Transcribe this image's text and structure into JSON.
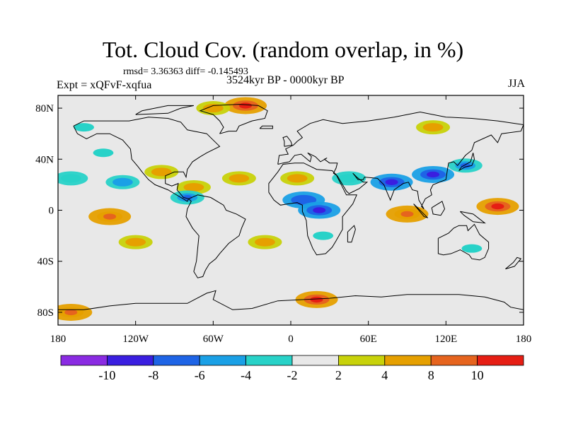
{
  "header": {
    "title": "Tot. Cloud Cov. (random overlap, in %)",
    "stats": "rmsd= 3.36363 diff= -0.145493",
    "experiment": "Expt = xQFvF-xqfua",
    "period": "3524kyr BP - 0000kyr BP",
    "season": "JJA"
  },
  "chart_data": {
    "type": "heatmap",
    "title": "Tot. Cloud Cov. (random overlap, in %)",
    "projection": "cylindrical equidistant",
    "xlabel": "",
    "ylabel": "",
    "xlim": [
      -180,
      180
    ],
    "ylim": [
      -90,
      90
    ],
    "x_ticks": [
      {
        "value": -180,
        "label": "180"
      },
      {
        "value": -120,
        "label": "120W"
      },
      {
        "value": -60,
        "label": "60W"
      },
      {
        "value": 0,
        "label": "0"
      },
      {
        "value": 60,
        "label": "60E"
      },
      {
        "value": 120,
        "label": "120E"
      },
      {
        "value": 180,
        "label": "180"
      }
    ],
    "y_ticks": [
      {
        "value": 80,
        "label": "80N"
      },
      {
        "value": 40,
        "label": "40N"
      },
      {
        "value": 0,
        "label": "0"
      },
      {
        "value": -40,
        "label": "40S"
      },
      {
        "value": -80,
        "label": "80S"
      }
    ],
    "colorbar": {
      "levels": [
        -10,
        -8,
        -6,
        -4,
        -2,
        2,
        4,
        8,
        10
      ],
      "labels": [
        "-10",
        "-8",
        "-6",
        "-4",
        "-2",
        "2",
        "4",
        "8",
        "10"
      ],
      "colors": [
        "#8a2be2",
        "#3a1ee0",
        "#1e64e6",
        "#1aa0e6",
        "#28d2c8",
        "#e8e8e8",
        "#c8d20a",
        "#e6a000",
        "#e6641e",
        "#e61e14"
      ]
    },
    "anomalies": [
      {
        "region": "Greenland north coast",
        "lon": -35,
        "lat": 82,
        "value": 11
      },
      {
        "region": "Arctic Canada",
        "lon": -60,
        "lat": 80,
        "value": 5
      },
      {
        "region": "Bering Strait",
        "lon": -160,
        "lat": 65,
        "value": -3
      },
      {
        "region": "North Pacific",
        "lon": -145,
        "lat": 45,
        "value": -3
      },
      {
        "region": "East Pacific subtropics",
        "lon": -130,
        "lat": 22,
        "value": -6
      },
      {
        "region": "North Pacific (west)",
        "lon": -170,
        "lat": 25,
        "value": -4
      },
      {
        "region": "Mexico",
        "lon": -100,
        "lat": 30,
        "value": 5
      },
      {
        "region": "Caribbean",
        "lon": -75,
        "lat": 18,
        "value": 6
      },
      {
        "region": "Central America",
        "lon": -80,
        "lat": 10,
        "value": -7
      },
      {
        "region": "Tropical Atlantic",
        "lon": -40,
        "lat": 25,
        "value": 5
      },
      {
        "region": "Sahara",
        "lon": 5,
        "lat": 25,
        "value": 5
      },
      {
        "region": "West Africa",
        "lon": 10,
        "lat": 8,
        "value": -8
      },
      {
        "region": "Central Africa",
        "lon": 22,
        "lat": 0,
        "value": -9
      },
      {
        "region": "Arabia",
        "lon": 45,
        "lat": 25,
        "value": -4
      },
      {
        "region": "India",
        "lon": 78,
        "lat": 22,
        "value": -9
      },
      {
        "region": "South China",
        "lon": 110,
        "lat": 28,
        "value": -9
      },
      {
        "region": "Japan",
        "lon": 135,
        "lat": 35,
        "value": -7
      },
      {
        "region": "Siberia",
        "lon": 110,
        "lat": 65,
        "value": 5
      },
      {
        "region": "Equatorial Indian Ocean",
        "lon": 90,
        "lat": -3,
        "value": 8
      },
      {
        "region": "West Pacific warm pool",
        "lon": 160,
        "lat": 3,
        "value": 10
      },
      {
        "region": "Equatorial East Pacific",
        "lon": -140,
        "lat": -5,
        "value": 8
      },
      {
        "region": "South Pacific",
        "lon": -120,
        "lat": -25,
        "value": 5
      },
      {
        "region": "South Atlantic",
        "lon": -20,
        "lat": -25,
        "value": 5
      },
      {
        "region": "Southern Africa",
        "lon": 25,
        "lat": -20,
        "value": -3
      },
      {
        "region": "Australia",
        "lon": 140,
        "lat": -30,
        "value": -3
      },
      {
        "region": "Southern Ocean",
        "lon": 20,
        "lat": -70,
        "value": 10
      },
      {
        "region": "Ross Sea",
        "lon": -170,
        "lat": -80,
        "value": 9
      }
    ]
  }
}
